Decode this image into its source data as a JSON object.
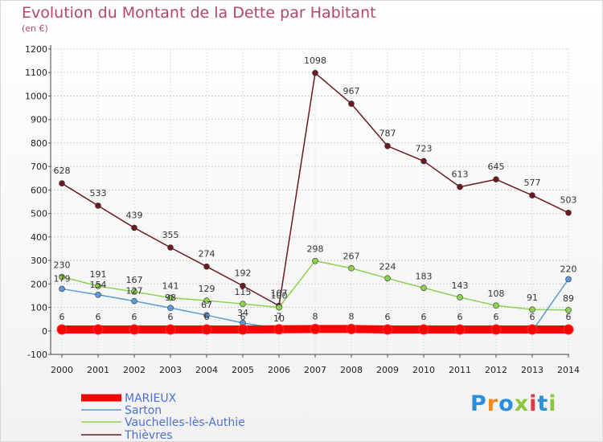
{
  "chart_data": {
    "type": "line",
    "title": "Evolution du Montant de la Dette par Habitant",
    "subtitle": "(en €)",
    "x": [
      "2000",
      "2001",
      "2002",
      "2003",
      "2004",
      "2005",
      "2006",
      "2007",
      "2008",
      "2009",
      "2010",
      "2011",
      "2012",
      "2013",
      "2014"
    ],
    "ylim": [
      -100,
      1200
    ],
    "yticks": [
      -100,
      0,
      100,
      200,
      300,
      400,
      500,
      600,
      700,
      800,
      900,
      1000,
      1100,
      1200
    ],
    "grid": true,
    "legend_position": "bottom-left",
    "series": [
      {
        "name": "MARIEUX",
        "color": "#ff0000",
        "values": [
          6,
          6,
          6,
          6,
          6,
          6,
          7,
          8,
          8,
          6,
          6,
          6,
          6,
          6,
          6
        ]
      },
      {
        "name": "Sarton",
        "color": "#5b9bd5",
        "values": [
          179,
          154,
          127,
          98,
          67,
          34,
          10,
          0,
          0,
          0,
          0,
          0,
          0,
          0,
          220
        ],
        "labels": [
          179,
          154,
          127,
          98,
          67,
          34,
          10,
          null,
          null,
          null,
          null,
          null,
          null,
          null,
          220
        ]
      },
      {
        "name": "Vauchelles-lès-Authie",
        "color": "#8ed14f",
        "values": [
          230,
          191,
          167,
          141,
          129,
          115,
          100,
          298,
          267,
          224,
          183,
          143,
          108,
          91,
          89
        ]
      },
      {
        "name": "Thièvres",
        "color": "#6b1a1f",
        "values": [
          628,
          533,
          439,
          355,
          274,
          192,
          107,
          1098,
          967,
          787,
          723,
          613,
          645,
          577,
          503
        ]
      }
    ]
  },
  "logo": {
    "text": "Proxiti"
  }
}
